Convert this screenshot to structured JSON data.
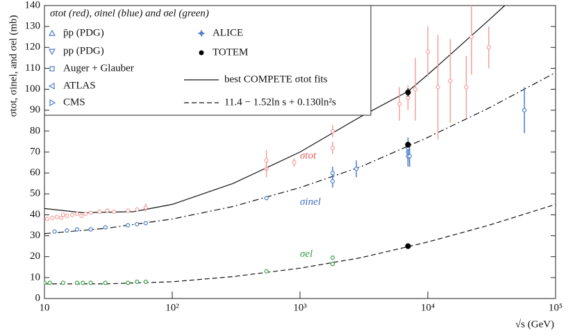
{
  "chart_data": {
    "type": "scatter",
    "xlabel": "√s  (GeV)",
    "ylabel": "σtot, σinel, and σel  (mb)",
    "log_x": true,
    "xlim": [
      10,
      100000
    ],
    "xticks": [
      10,
      {
        "value": 100,
        "label": "10²"
      },
      {
        "value": 1000,
        "label": "10³"
      },
      {
        "value": 10000,
        "label": "10⁴"
      },
      {
        "value": 100000,
        "label": "10⁵"
      }
    ],
    "ylim": [
      0,
      140
    ],
    "yticks": [
      0,
      10,
      20,
      30,
      40,
      50,
      60,
      70,
      80,
      90,
      100,
      110,
      120,
      130,
      140
    ],
    "legend": {
      "title": "σtot (red), σinel (blue) and σel (green)",
      "entries": [
        {
          "name": "p̄p (PDG)",
          "marker": "triangle-up"
        },
        {
          "name": "pp (PDG)",
          "marker": "triangle-down"
        },
        {
          "name": "Auger + Glauber",
          "marker": "square"
        },
        {
          "name": "ATLAS",
          "marker": "triangle-left"
        },
        {
          "name": "CMS",
          "marker": "triangle-right"
        },
        {
          "name": "ALICE",
          "marker": "star"
        },
        {
          "name": "TOTEM",
          "marker": "dot"
        },
        {
          "name": "best COMPETE σtot fits",
          "marker": "solid"
        },
        {
          "name": "11.4 − 1.52ln s + 0.130ln²s",
          "marker": "dashed"
        }
      ]
    },
    "annotations": [
      {
        "text": "σtot",
        "color": "#e0605a"
      },
      {
        "text": "σinel",
        "color": "#3f6fc0"
      },
      {
        "text": "σel",
        "color": "#2e9a3e"
      }
    ],
    "curves": [
      {
        "style": "solid",
        "x": [
          10,
          20,
          50,
          100,
          300,
          1000,
          3000,
          7000,
          10000,
          30000,
          40000
        ],
        "values": [
          43,
          41,
          41.5,
          45,
          55,
          70,
          87,
          99,
          107,
          133,
          140
        ]
      },
      {
        "style": "dashdot",
        "x": [
          10,
          30,
          100,
          300,
          1000,
          3000,
          10000,
          30000,
          100000
        ],
        "values": [
          31,
          33.5,
          38,
          44,
          53,
          63,
          77,
          91,
          108
        ]
      },
      {
        "style": "dashed",
        "x": [
          10,
          30,
          100,
          300,
          1000,
          3000,
          10000,
          30000,
          100000
        ],
        "values": [
          7,
          7,
          8,
          10.5,
          14.5,
          19.5,
          27,
          35,
          45
        ]
      }
    ],
    "series": [
      {
        "color": "#f2a09c",
        "x": [
          10.5,
          11.5,
          12.5,
          13.5,
          14,
          15,
          16.5,
          18,
          19.5,
          21,
          23,
          27,
          31,
          35,
          45,
          53,
          62,
          546,
          546,
          900,
          1800,
          1800,
          6000,
          7000,
          8000,
          10000,
          12000,
          15000,
          20000,
          22000,
          30000
        ],
        "values": [
          38,
          38.5,
          39,
          38.5,
          40,
          39.5,
          40,
          40.5,
          39.5,
          40.5,
          41,
          41.5,
          42,
          41.5,
          42,
          42.5,
          43.5,
          62,
          66,
          65,
          72,
          80,
          93,
          96,
          100,
          118,
          101,
          104,
          101,
          125,
          120
        ],
        "errors": [
          1,
          1,
          1,
          1,
          1,
          1,
          1,
          1,
          1,
          1,
          1,
          1,
          1,
          1,
          1,
          1,
          2,
          4,
          5,
          2,
          3,
          3,
          8,
          6,
          15,
          12,
          25,
          20,
          15,
          18,
          10
        ]
      },
      {
        "color": "#4a7cc9",
        "x": [
          12,
          15,
          18,
          23,
          30,
          45,
          53,
          62,
          546,
          1800,
          1800,
          2760,
          7000,
          7000,
          7000,
          7200,
          57000
        ],
        "values": [
          32,
          32.5,
          33,
          33,
          34,
          35,
          35.5,
          36,
          48,
          60,
          56,
          62,
          70,
          68,
          72,
          68,
          90
        ],
        "errors": [
          1,
          1,
          1,
          1,
          1,
          1,
          1,
          1,
          1,
          3,
          3,
          4,
          5,
          5,
          5,
          5,
          11
        ]
      },
      {
        "color": "#3aa048",
        "x": [
          10,
          11,
          14,
          18,
          20,
          23,
          30,
          45,
          53,
          62,
          546,
          1800,
          1800
        ],
        "values": [
          7.5,
          7.5,
          7.5,
          7.5,
          7.5,
          7.5,
          7.5,
          7.5,
          8,
          8,
          13,
          19.5,
          16.5
        ],
        "errors": [
          0.5,
          0.5,
          0.5,
          0.5,
          0.5,
          0.5,
          0.5,
          0.5,
          0.5,
          0.5,
          0.5,
          1,
          1
        ]
      },
      {
        "color": "#000000",
        "x": [
          7000,
          7000,
          7000
        ],
        "values": [
          98.5,
          73.5,
          25
        ],
        "errors": [
          2,
          1.5,
          1
        ]
      }
    ]
  }
}
